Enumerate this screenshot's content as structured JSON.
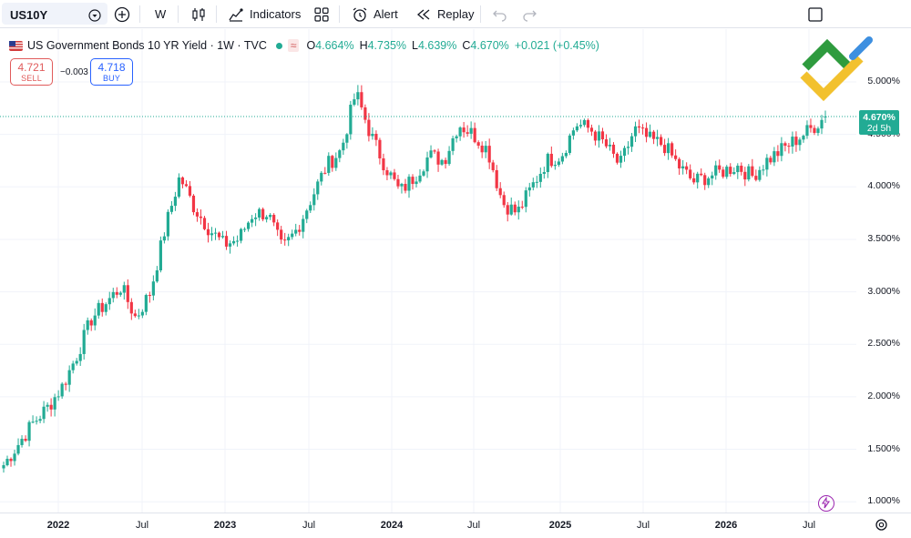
{
  "toolbar": {
    "symbol": "US10Y",
    "interval": "W",
    "indicators_label": "Indicators",
    "alert_label": "Alert",
    "replay_label": "Replay"
  },
  "legend": {
    "title": "US Government Bonds 10 YR Yield · 1W · TVC",
    "open_key": "O",
    "open": "4.664%",
    "high_key": "H",
    "high": "4.735%",
    "low_key": "L",
    "low": "4.639%",
    "close_key": "C",
    "close": "4.670%",
    "change": "+0.021 (+0.45%)"
  },
  "trade": {
    "sell_price": "4.721",
    "sell_label": "SELL",
    "spread": "−0.003",
    "buy_price": "4.718",
    "buy_label": "BUY"
  },
  "price_axis": {
    "labels": [
      "5.000%",
      "4.500%",
      "4.000%",
      "3.500%",
      "3.000%",
      "2.500%",
      "2.000%",
      "1.500%",
      "1.000%"
    ],
    "current_price": "4.670%",
    "countdown": "2d 5h"
  },
  "time_axis": {
    "labels": [
      "2022",
      "Jul",
      "2023",
      "Jul",
      "2024",
      "Jul",
      "2025",
      "Jul",
      "2026",
      "Jul"
    ]
  },
  "colors": {
    "up": "#22ab94",
    "down": "#f23645",
    "accent": "#2962ff"
  },
  "chart_data": {
    "type": "candlestick",
    "unit": "%",
    "interval": "1W",
    "ylim": [
      1.0,
      5.0
    ],
    "x": [
      "2022",
      "Jul",
      "2023",
      "Jul",
      "2024",
      "Jul",
      "2025",
      "Jul",
      "2026",
      "Jul"
    ],
    "trend_closes": [
      1.35,
      1.55,
      1.75,
      1.9,
      2.1,
      2.4,
      2.75,
      2.9,
      3.05,
      2.75,
      3.0,
      3.6,
      4.1,
      3.8,
      3.6,
      3.45,
      3.5,
      3.75,
      3.75,
      3.4,
      3.6,
      3.9,
      4.2,
      4.35,
      4.9,
      4.5,
      4.2,
      3.95,
      4.1,
      4.3,
      4.25,
      4.6,
      4.5,
      4.35,
      3.85,
      3.75,
      4.0,
      4.25,
      4.3,
      4.6,
      4.55,
      4.4,
      4.2,
      4.55,
      4.45,
      4.4,
      4.2,
      4.05,
      4.1,
      4.15,
      4.2,
      4.1,
      4.25,
      4.35,
      4.45,
      4.55,
      4.67
    ],
    "last": {
      "open": 4.664,
      "high": 4.735,
      "low": 4.639,
      "close": 4.67
    }
  }
}
